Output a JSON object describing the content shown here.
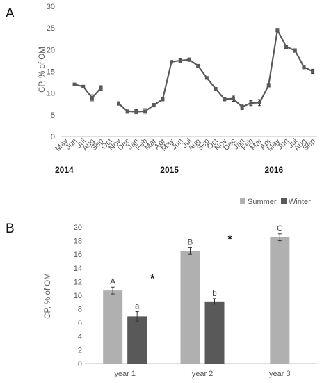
{
  "panels": {
    "a_label": "A",
    "b_label": "B"
  },
  "colors": {
    "line": "#595959",
    "summer": "#b0b0b0",
    "winter": "#595959",
    "axis": "#bfbfbf",
    "text": "#595959"
  },
  "chart_data": [
    {
      "type": "line",
      "ylabel": "CP, % of OM",
      "ylim": [
        0,
        30
      ],
      "yticks": [
        "0",
        "5",
        "10",
        "15",
        "20",
        "25",
        "30"
      ],
      "categories": [
        "May",
        "Jun",
        "Jul",
        "Aug",
        "Sep",
        "Oct",
        "Nov",
        "Dec",
        "Jan",
        "Feb",
        "Mar",
        "Apr",
        "May",
        "Jun",
        "Jul",
        "Aug",
        "Sep",
        "Oct",
        "Nov",
        "Dec",
        "Jan",
        "Feb",
        "Mar",
        "Apr",
        "May",
        "Jun",
        "Jul",
        "Aug",
        "Sep"
      ],
      "years": [
        "2014",
        "2015",
        "2016"
      ],
      "grid": false,
      "series": [
        {
          "values": [
            null,
            12.0,
            11.5,
            8.9,
            11.2,
            null,
            7.6,
            5.8,
            5.7,
            5.8,
            7.2,
            8.6,
            17.2,
            17.5,
            17.7,
            16.3,
            13.5,
            11.0,
            8.6,
            8.7,
            6.8,
            7.7,
            7.8,
            11.8,
            24.5,
            20.7,
            19.8,
            16.0,
            15.0
          ],
          "errors": [
            null,
            0.3,
            0.3,
            0.7,
            0.5,
            null,
            0.4,
            0.3,
            0.5,
            0.6,
            0.4,
            0.4,
            0.3,
            0.4,
            0.4,
            0.3,
            0.3,
            0.3,
            0.4,
            0.6,
            0.6,
            0.6,
            0.7,
            0.4,
            0.4,
            0.4,
            0.4,
            0.4,
            0.5
          ]
        }
      ]
    },
    {
      "type": "bar",
      "ylabel": "CP, % of OM",
      "ylim": [
        0,
        20
      ],
      "yticks": [
        "0",
        "2",
        "4",
        "6",
        "8",
        "10",
        "12",
        "14",
        "16",
        "18",
        "20"
      ],
      "categories": [
        "year 1",
        "year 2",
        "year 3"
      ],
      "legend": "top-right",
      "grid": false,
      "series": [
        {
          "name": "Summer",
          "values": [
            10.7,
            16.5,
            18.5
          ],
          "errors": [
            0.5,
            0.5,
            0.5
          ],
          "letters": [
            "A",
            "B",
            "C"
          ]
        },
        {
          "name": "Winter",
          "values": [
            6.9,
            9.1,
            null
          ],
          "errors": [
            0.7,
            0.4,
            null
          ],
          "letters": [
            "a",
            "b",
            ""
          ]
        }
      ],
      "annotations": [
        "*",
        "*"
      ]
    }
  ]
}
